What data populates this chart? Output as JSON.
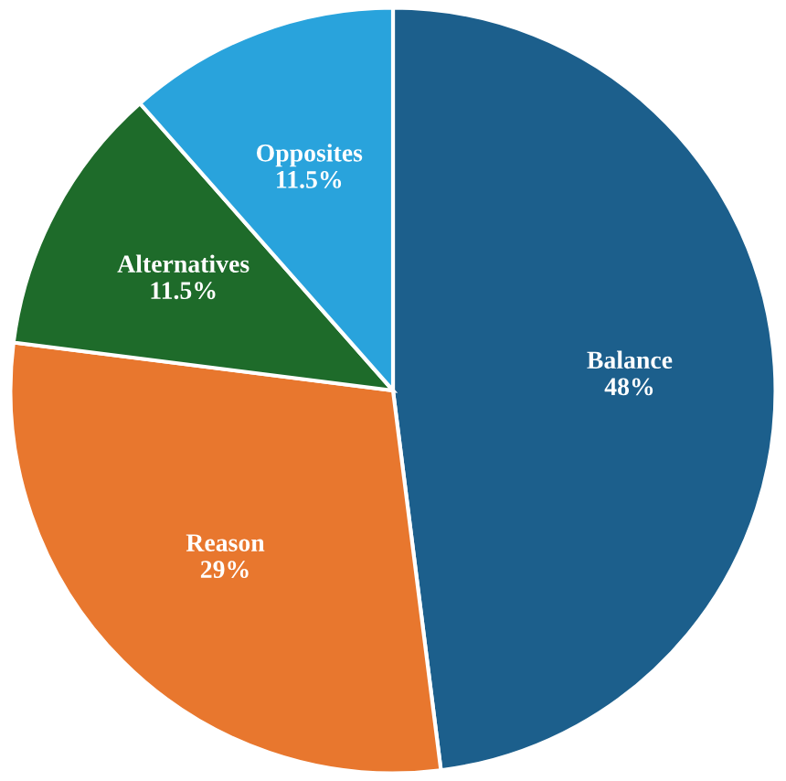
{
  "chart_data": {
    "type": "pie",
    "categories": [
      "Balance",
      "Reason",
      "Alternatives",
      "Opposites"
    ],
    "values": [
      48,
      29,
      11.5,
      11.5
    ],
    "value_labels": [
      "48%",
      "29%",
      "11.5%",
      "11.5%"
    ],
    "colors": [
      "#1c5f8c",
      "#e8772e",
      "#1e6b2a",
      "#29a3dc"
    ]
  }
}
